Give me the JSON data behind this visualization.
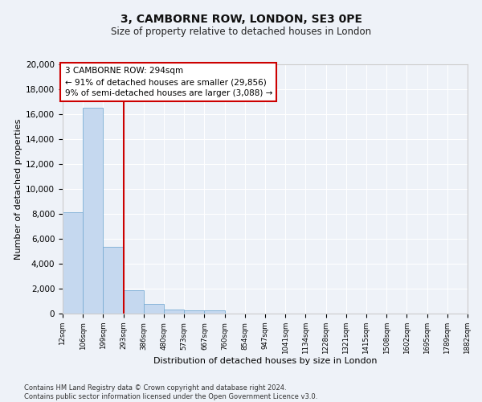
{
  "title": "3, CAMBORNE ROW, LONDON, SE3 0PE",
  "subtitle": "Size of property relative to detached houses in London",
  "xlabel": "Distribution of detached houses by size in London",
  "ylabel": "Number of detached properties",
  "bar_color": "#c5d8ef",
  "bar_edge_color": "#7aadd4",
  "bar_heights": [
    8100,
    16500,
    5350,
    1850,
    800,
    350,
    280,
    230,
    0,
    0,
    0,
    0,
    0,
    0,
    0,
    0,
    0,
    0,
    0,
    0
  ],
  "x_labels": [
    "12sqm",
    "106sqm",
    "199sqm",
    "293sqm",
    "386sqm",
    "480sqm",
    "573sqm",
    "667sqm",
    "760sqm",
    "854sqm",
    "947sqm",
    "1041sqm",
    "1134sqm",
    "1228sqm",
    "1321sqm",
    "1415sqm",
    "1508sqm",
    "1602sqm",
    "1695sqm",
    "1789sqm",
    "1882sqm"
  ],
  "ylim": [
    0,
    20000
  ],
  "yticks": [
    0,
    2000,
    4000,
    6000,
    8000,
    10000,
    12000,
    14000,
    16000,
    18000,
    20000
  ],
  "annotation_text": "3 CAMBORNE ROW: 294sqm\n← 91% of detached houses are smaller (29,856)\n9% of semi-detached houses are larger (3,088) →",
  "annotation_box_color": "#ffffff",
  "annotation_border_color": "#cc0000",
  "vline_color": "#cc0000",
  "footer_text": "Contains HM Land Registry data © Crown copyright and database right 2024.\nContains public sector information licensed under the Open Government Licence v3.0.",
  "background_color": "#eef2f8",
  "grid_color": "#ffffff"
}
